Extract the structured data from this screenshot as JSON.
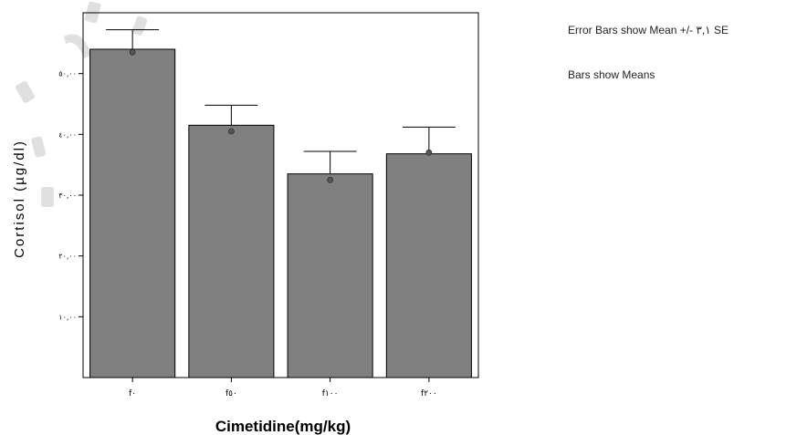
{
  "notes": {
    "error_bars": "Error Bars show Mean +/- ٣,١ SE",
    "bars": "Bars show Means"
  },
  "colors": {
    "bar_fill": "#808080",
    "bar_stroke": "#000000",
    "axis": "#000000",
    "watermark": "#c9c9c9"
  },
  "chart_data": {
    "type": "bar",
    "categories": [
      "f٠",
      "f٥٠",
      "f١٠٠",
      "f٢٠٠"
    ],
    "values": [
      54.0,
      41.5,
      33.5,
      36.8
    ],
    "error_upper": [
      57.2,
      44.8,
      37.2,
      41.2
    ],
    "point_markers": [
      53.5,
      40.5,
      32.5,
      37.0
    ],
    "xlabel": "Cimetidine(mg/kg)",
    "ylabel": "Cortisol (µg/dl)",
    "ylim": [
      0,
      60
    ],
    "yticks": [
      10,
      20,
      30,
      40,
      50
    ],
    "ytick_labels": [
      "١٠,٠٠",
      "٢٠,٠٠",
      "٣٠,٠٠",
      "٤٠,٠٠",
      "٥٠,٠٠"
    ],
    "grid": false
  }
}
